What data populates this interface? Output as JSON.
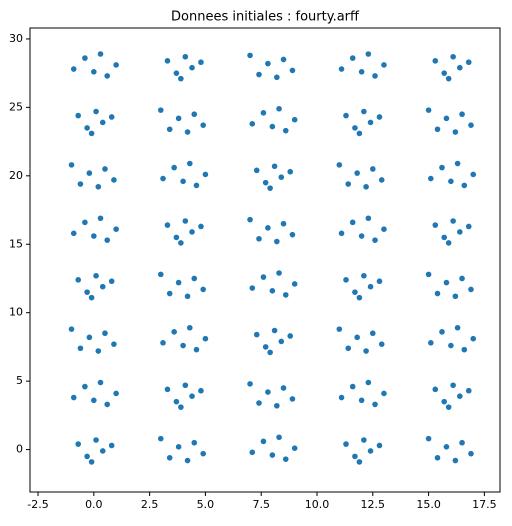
{
  "chart_data": {
    "type": "scatter",
    "title": "Donnees initiales : fourty.arff",
    "series": [
      {
        "color": "#1f77b4",
        "x": [
          -0.7,
          -0.3,
          0.1,
          0.4,
          0.8,
          -0.1,
          -0.9,
          -0.4,
          0,
          0.3,
          0.6,
          1,
          -0.6,
          -0.2,
          0.2,
          0.5,
          0.9,
          -1,
          -0.7,
          -0.3,
          0.1,
          0.4,
          0.8,
          -0.1,
          -0.9,
          -0.4,
          0,
          0.3,
          0.6,
          1,
          -0.6,
          -0.2,
          0.2,
          0.5,
          0.9,
          -1,
          -0.7,
          -0.3,
          0.1,
          0.4,
          0.8,
          -0.1,
          -0.9,
          -0.4,
          0,
          0.3,
          0.6,
          1,
          3.4,
          3.8,
          4.2,
          4.5,
          4.9,
          3,
          3.3,
          3.7,
          4.1,
          4.4,
          4.8,
          3.9,
          3.1,
          3.6,
          4,
          4.3,
          4.6,
          5,
          3.4,
          3.8,
          4.2,
          4.5,
          4.9,
          3,
          3.3,
          3.7,
          4.1,
          4.4,
          4.8,
          3.9,
          3.1,
          3.6,
          4,
          4.3,
          4.6,
          5,
          3.4,
          3.8,
          4.2,
          4.5,
          4.9,
          3,
          3.3,
          3.7,
          4.1,
          4.4,
          4.8,
          3.9,
          7.1,
          7.6,
          8,
          8.3,
          8.6,
          9,
          7.4,
          7.8,
          8.2,
          8.5,
          8.9,
          7,
          7.3,
          7.7,
          8.1,
          8.4,
          8.8,
          7.9,
          7.1,
          7.6,
          8,
          8.3,
          8.6,
          9,
          7.4,
          7.8,
          8.2,
          8.5,
          8.9,
          7,
          7.3,
          7.7,
          8.1,
          8.4,
          8.8,
          7.9,
          7.1,
          7.6,
          8,
          8.3,
          8.6,
          9,
          7.4,
          7.8,
          8.2,
          8.5,
          8.9,
          7,
          11.3,
          11.7,
          12.1,
          12.4,
          12.8,
          11.9,
          11.1,
          11.6,
          12,
          12.3,
          12.6,
          13,
          11.4,
          11.8,
          12.2,
          12.5,
          12.9,
          11,
          11.3,
          11.7,
          12.1,
          12.4,
          12.8,
          11.9,
          11.1,
          11.6,
          12,
          12.3,
          12.6,
          13,
          11.4,
          11.8,
          12.2,
          12.5,
          12.9,
          11,
          11.3,
          11.7,
          12.1,
          12.4,
          12.8,
          11.9,
          11.1,
          11.6,
          12,
          12.3,
          12.6,
          13,
          15.4,
          15.8,
          16.2,
          16.5,
          16.9,
          15,
          15.3,
          15.7,
          16.1,
          16.4,
          16.8,
          15.9,
          15.1,
          15.6,
          16,
          16.3,
          16.6,
          17,
          15.4,
          15.8,
          16.2,
          16.5,
          16.9,
          15,
          15.3,
          15.7,
          16.1,
          16.4,
          16.8,
          15.9,
          15.1,
          15.6,
          16,
          16.3,
          16.6,
          17,
          15.4,
          15.8,
          16.2,
          16.5,
          16.9,
          15,
          15.3,
          15.7,
          16.1,
          16.4,
          16.8,
          15.9
        ],
        "values": [
          0.4,
          -0.5,
          0.7,
          -0.1,
          0.3,
          -0.9,
          3.8,
          4.6,
          3.6,
          4.9,
          3.3,
          4.1,
          7.4,
          8.2,
          7.2,
          8.5,
          7.7,
          8.8,
          12.4,
          11.5,
          12.7,
          11.9,
          12.3,
          11.1,
          15.8,
          16.6,
          15.6,
          16.9,
          15.3,
          16.1,
          19.4,
          20.2,
          19.2,
          20.5,
          19.7,
          20.8,
          24.4,
          23.5,
          24.7,
          23.9,
          24.3,
          23.1,
          27.8,
          28.6,
          27.6,
          28.9,
          27.3,
          28.1,
          -0.6,
          0.2,
          -0.8,
          0.5,
          -0.3,
          0.8,
          4.4,
          3.5,
          4.7,
          3.9,
          4.3,
          3.1,
          7.8,
          8.6,
          7.6,
          8.9,
          7.3,
          8.1,
          11.4,
          12.2,
          11.2,
          12.5,
          11.7,
          12.8,
          16.4,
          15.5,
          16.7,
          15.9,
          16.3,
          15.1,
          19.8,
          20.6,
          19.6,
          20.9,
          19.3,
          20.1,
          23.4,
          24.2,
          23.2,
          24.5,
          23.7,
          24.8,
          28.4,
          27.5,
          28.7,
          27.9,
          28.3,
          27.1,
          -0.2,
          0.6,
          -0.4,
          0.9,
          -0.7,
          0.1,
          3.4,
          4.2,
          3.2,
          4.5,
          3.7,
          4.8,
          8.4,
          7.5,
          8.7,
          7.9,
          8.3,
          7.1,
          11.8,
          12.6,
          11.6,
          12.9,
          11.3,
          12.1,
          15.4,
          16.2,
          15.2,
          16.5,
          15.7,
          16.8,
          20.4,
          19.5,
          20.7,
          19.9,
          20.3,
          19.1,
          23.8,
          24.6,
          23.6,
          24.9,
          23.3,
          24.1,
          27.4,
          28.2,
          27.2,
          28.5,
          27.7,
          28.8,
          0.4,
          -0.5,
          0.7,
          -0.1,
          0.3,
          -0.9,
          3.8,
          4.6,
          3.6,
          4.9,
          3.3,
          4.1,
          7.4,
          8.2,
          7.2,
          8.5,
          7.7,
          8.8,
          12.4,
          11.5,
          12.7,
          11.9,
          12.3,
          11.1,
          15.8,
          16.6,
          15.6,
          16.9,
          15.3,
          16.1,
          19.4,
          20.2,
          19.2,
          20.5,
          19.7,
          20.8,
          24.4,
          23.5,
          24.7,
          23.9,
          24.3,
          23.1,
          27.8,
          28.6,
          27.6,
          28.9,
          27.3,
          28.1,
          -0.6,
          0.2,
          -0.8,
          0.5,
          -0.3,
          0.8,
          4.4,
          3.5,
          4.7,
          3.9,
          4.3,
          3.1,
          7.8,
          8.6,
          7.6,
          8.9,
          7.3,
          8.1,
          11.4,
          12.2,
          11.2,
          12.5,
          11.7,
          12.8,
          16.4,
          15.5,
          16.7,
          15.9,
          16.3,
          15.1,
          19.8,
          20.6,
          19.6,
          20.9,
          19.3,
          20.1,
          23.4,
          24.2,
          23.2,
          24.5,
          23.7,
          24.8,
          28.4,
          27.5,
          28.7,
          27.9,
          28.3,
          27.1
        ]
      }
    ],
    "xlim": [
      -2.86,
      18.2
    ],
    "ylim": [
      -3.1,
      30.8
    ],
    "xticks": [
      -2.5,
      {
        "value": 0,
        "label": "0.0"
      },
      2.5,
      {
        "value": 5,
        "label": "5.0"
      },
      7.5,
      {
        "value": 10,
        "label": "10.0"
      },
      12.5,
      {
        "value": 15,
        "label": "15.0"
      },
      17.5
    ],
    "yticks": [
      0,
      5,
      10,
      15,
      20,
      25,
      30
    ]
  }
}
